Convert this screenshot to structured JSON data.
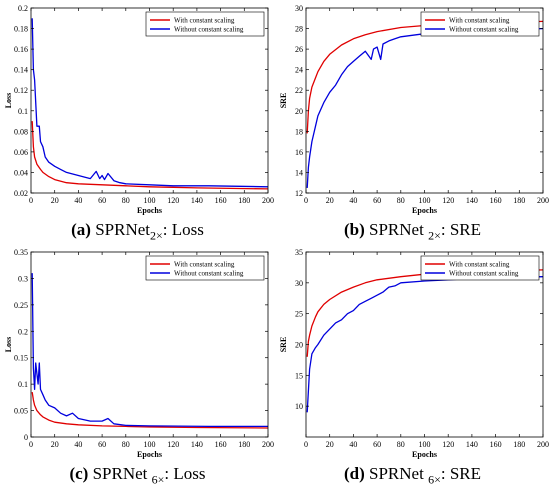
{
  "captions": [
    {
      "letter": "(a)",
      "text_pre": " SPRNet",
      "subscript": "2×",
      "text_post": ": Loss"
    },
    {
      "letter": "(b)",
      "text_pre": " SPRNet ",
      "subscript": "2×",
      "text_post": ": SRE"
    },
    {
      "letter": "(c)",
      "text_pre": " SPRNet ",
      "subscript": "6×",
      "text_post": ": Loss"
    },
    {
      "letter": "(d)",
      "text_pre": " SPRNet ",
      "subscript": "6×",
      "text_post": ": SRE"
    }
  ],
  "chart_data": [
    {
      "type": "line",
      "xlabel": "Epochs",
      "ylabel": "Loss",
      "xlim": [
        0,
        200
      ],
      "ylim": [
        0.02,
        0.2
      ],
      "xticks": [
        0,
        20,
        40,
        60,
        80,
        100,
        120,
        140,
        160,
        180,
        200
      ],
      "yticks": [
        0.02,
        0.04,
        0.06,
        0.08,
        0.1,
        0.12,
        0.14,
        0.16,
        0.18,
        0.2
      ],
      "legend_position": "top-right",
      "series": [
        {
          "name": "With constant scaling",
          "color": "#e00000",
          "x": [
            1,
            2,
            3,
            5,
            8,
            10,
            15,
            20,
            30,
            40,
            60,
            80,
            100,
            140,
            200
          ],
          "y": [
            0.09,
            0.065,
            0.055,
            0.048,
            0.043,
            0.04,
            0.036,
            0.033,
            0.03,
            0.029,
            0.028,
            0.027,
            0.026,
            0.025,
            0.024
          ]
        },
        {
          "name": "Without constant scaling",
          "color": "#0000dd",
          "x": [
            1,
            2,
            3,
            5,
            7,
            8,
            10,
            12,
            15,
            20,
            25,
            30,
            40,
            50,
            55,
            58,
            60,
            62,
            65,
            70,
            75,
            80,
            100,
            120,
            150,
            200
          ],
          "y": [
            0.19,
            0.14,
            0.13,
            0.085,
            0.085,
            0.07,
            0.065,
            0.055,
            0.05,
            0.046,
            0.043,
            0.04,
            0.037,
            0.034,
            0.041,
            0.034,
            0.037,
            0.033,
            0.039,
            0.032,
            0.03,
            0.029,
            0.028,
            0.027,
            0.027,
            0.026
          ]
        }
      ]
    },
    {
      "type": "line",
      "xlabel": "Epochs",
      "ylabel": "SRE",
      "xlim": [
        0,
        200
      ],
      "ylim": [
        12,
        30
      ],
      "xticks": [
        0,
        20,
        40,
        60,
        80,
        100,
        120,
        140,
        160,
        180,
        200
      ],
      "yticks": [
        12,
        14,
        16,
        18,
        20,
        22,
        24,
        26,
        28,
        30
      ],
      "legend_position": "top-right",
      "series": [
        {
          "name": "With constant scaling",
          "color": "#e00000",
          "x": [
            1,
            2,
            3,
            5,
            8,
            10,
            15,
            20,
            30,
            40,
            50,
            60,
            80,
            100,
            140,
            200
          ],
          "y": [
            17.8,
            20.0,
            21.2,
            22.3,
            23.2,
            23.8,
            24.8,
            25.5,
            26.4,
            27.0,
            27.4,
            27.7,
            28.1,
            28.3,
            28.5,
            28.7
          ]
        },
        {
          "name": "Without constant scaling",
          "color": "#0000dd",
          "x": [
            1,
            2,
            3,
            5,
            8,
            10,
            15,
            20,
            25,
            30,
            35,
            40,
            45,
            50,
            55,
            57,
            60,
            63,
            65,
            70,
            75,
            80,
            100,
            120,
            150,
            200
          ],
          "y": [
            12.5,
            14.5,
            15.5,
            17.0,
            18.5,
            19.5,
            20.8,
            21.8,
            22.5,
            23.5,
            24.3,
            24.8,
            25.3,
            25.8,
            25.0,
            26.0,
            26.2,
            25.0,
            26.5,
            26.8,
            27.0,
            27.2,
            27.5,
            27.7,
            27.85,
            28.0
          ]
        }
      ]
    },
    {
      "type": "line",
      "xlabel": "Epochs",
      "ylabel": "Loss",
      "xlim": [
        0,
        200
      ],
      "ylim": [
        0,
        0.35
      ],
      "xticks": [
        0,
        20,
        40,
        60,
        80,
        100,
        120,
        140,
        160,
        180,
        200
      ],
      "yticks": [
        0,
        0.05,
        0.1,
        0.15,
        0.2,
        0.25,
        0.3,
        0.35
      ],
      "legend_position": "top-right",
      "series": [
        {
          "name": "With constant scaling",
          "color": "#e00000",
          "x": [
            1,
            2,
            3,
            5,
            8,
            10,
            15,
            20,
            30,
            40,
            60,
            80,
            100,
            140,
            200
          ],
          "y": [
            0.085,
            0.07,
            0.06,
            0.05,
            0.042,
            0.038,
            0.032,
            0.028,
            0.025,
            0.023,
            0.021,
            0.02,
            0.019,
            0.018,
            0.017
          ]
        },
        {
          "name": "Without constant scaling",
          "color": "#0000dd",
          "x": [
            1,
            2,
            3,
            4,
            5,
            6,
            7,
            8,
            10,
            12,
            15,
            20,
            25,
            30,
            35,
            40,
            50,
            60,
            65,
            70,
            80,
            100,
            150,
            200
          ],
          "y": [
            0.31,
            0.13,
            0.09,
            0.14,
            0.12,
            0.1,
            0.14,
            0.09,
            0.08,
            0.07,
            0.06,
            0.055,
            0.045,
            0.04,
            0.045,
            0.035,
            0.03,
            0.03,
            0.035,
            0.025,
            0.022,
            0.021,
            0.02,
            0.02
          ]
        }
      ]
    },
    {
      "type": "line",
      "xlabel": "Epochs",
      "ylabel": "SRE",
      "xlim": [
        0,
        200
      ],
      "ylim": [
        5,
        35
      ],
      "xticks": [
        0,
        20,
        40,
        60,
        80,
        100,
        120,
        140,
        160,
        180,
        200
      ],
      "yticks": [
        10,
        15,
        20,
        25,
        30,
        35
      ],
      "legend_position": "top-right",
      "series": [
        {
          "name": "With constant scaling",
          "color": "#e00000",
          "x": [
            1,
            2,
            3,
            5,
            8,
            10,
            15,
            20,
            30,
            40,
            50,
            60,
            80,
            100,
            140,
            200
          ],
          "y": [
            18.0,
            20.5,
            21.5,
            23.0,
            24.5,
            25.3,
            26.5,
            27.3,
            28.5,
            29.3,
            30.0,
            30.5,
            31.0,
            31.4,
            31.8,
            32.1
          ]
        },
        {
          "name": "Without constant scaling",
          "color": "#0000dd",
          "x": [
            1,
            2,
            3,
            5,
            8,
            10,
            15,
            20,
            25,
            30,
            35,
            40,
            45,
            50,
            55,
            60,
            65,
            68,
            70,
            75,
            80,
            100,
            120,
            150,
            200
          ],
          "y": [
            9.0,
            12.5,
            16.0,
            18.5,
            19.5,
            20.0,
            21.5,
            22.5,
            23.5,
            24.0,
            25.0,
            25.5,
            26.5,
            27.0,
            27.5,
            28.0,
            28.5,
            29.0,
            29.3,
            29.5,
            30.0,
            30.3,
            30.5,
            30.8,
            31.0
          ]
        }
      ]
    }
  ]
}
